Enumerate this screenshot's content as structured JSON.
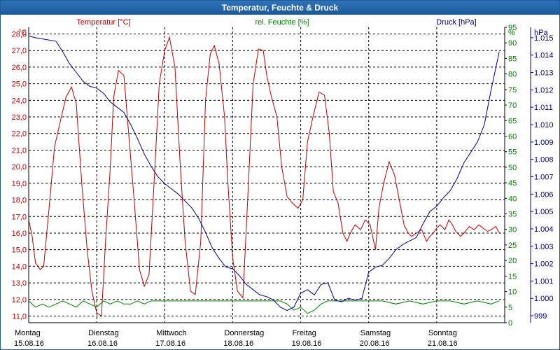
{
  "window": {
    "title": "Temperatur, Feuchte & Druck"
  },
  "chart_data": {
    "type": "line",
    "title": "Temperatur, Feuchte & Druck",
    "grid": true,
    "colors": {
      "temperature": "#c00000",
      "humidity": "#008000",
      "pressure": "#00008b",
      "grid": "#000000"
    },
    "axes": {
      "left": {
        "label": "Temperatur [°C]",
        "unit": "°C",
        "min": 10.6,
        "max": 28.4,
        "ticks": [
          "11,0",
          "12,0",
          "13,0",
          "14,0",
          "15,0",
          "16,0",
          "17,0",
          "18,0",
          "19,0",
          "20,0",
          "21,0",
          "22,0",
          "23,0",
          "24,0",
          "25,0",
          "26,0",
          "27,0",
          "28,0"
        ]
      },
      "right1": {
        "label": "rel. Feuchte [%]",
        "unit": "%",
        "min": 0,
        "max": 95,
        "ticks": [
          "0",
          "5",
          "10",
          "15",
          "20",
          "25",
          "30",
          "35",
          "40",
          "45",
          "50",
          "55",
          "60",
          "65",
          "70",
          "75",
          "80",
          "85",
          "90",
          "95"
        ]
      },
      "right2": {
        "label": "Druck [hPa]",
        "unit": "hPa",
        "min": 998.6,
        "max": 1015.6,
        "ticks": [
          "999",
          "1.000",
          "1.001",
          "1.002",
          "1.003",
          "1.004",
          "1.005",
          "1.006",
          "1.007",
          "1.008",
          "1.009",
          "1.010",
          "1.011",
          "1.012",
          "1.013",
          "1.014",
          "1.015"
        ]
      },
      "x": {
        "min": 0,
        "max": 7.0
      }
    },
    "days": [
      {
        "day": "Montag",
        "date": "15.08.16"
      },
      {
        "day": "Dienstag",
        "date": "16.08.16"
      },
      {
        "day": "Mittwoch",
        "date": "17.08.16"
      },
      {
        "day": "Donnerstag",
        "date": "18.08.16"
      },
      {
        "day": "Freitag",
        "date": "19.08.16"
      },
      {
        "day": "Samstag",
        "date": "20.08.16"
      },
      {
        "day": "Sonntag",
        "date": "21.08.16"
      }
    ],
    "series": [
      {
        "name": "Temperatur",
        "axis": "left",
        "color": "#c00000",
        "x": [
          0.0,
          0.05,
          0.1,
          0.17,
          0.22,
          0.3,
          0.38,
          0.48,
          0.55,
          0.63,
          0.7,
          0.78,
          0.86,
          0.93,
          1.0,
          1.07,
          1.13,
          1.2,
          1.25,
          1.32,
          1.4,
          1.47,
          1.55,
          1.63,
          1.7,
          1.77,
          1.85,
          1.92,
          2.0,
          2.07,
          2.15,
          2.23,
          2.3,
          2.38,
          2.45,
          2.53,
          2.6,
          2.67,
          2.73,
          2.8,
          2.88,
          2.93,
          3.0,
          3.07,
          3.15,
          3.22,
          3.3,
          3.38,
          3.45,
          3.5,
          3.57,
          3.65,
          3.72,
          3.8,
          3.88,
          3.96,
          4.03,
          4.1,
          4.18,
          4.27,
          4.35,
          4.42,
          4.48,
          4.55,
          4.62,
          4.68,
          4.73,
          4.8,
          4.88,
          4.95,
          5.02,
          5.1,
          5.15,
          5.22,
          5.3,
          5.38,
          5.45,
          5.52,
          5.58,
          5.63,
          5.7,
          5.78,
          5.85,
          5.9,
          5.95,
          6.0,
          6.05,
          6.12,
          6.18,
          6.23,
          6.28,
          6.35,
          6.4,
          6.48,
          6.55,
          6.62,
          6.68,
          6.75,
          6.8,
          6.87,
          6.92
        ],
        "values": [
          16.8,
          15.8,
          14.2,
          13.8,
          14.0,
          17.5,
          21.2,
          23.0,
          24.2,
          24.8,
          23.8,
          19.0,
          15.0,
          12.5,
          11.2,
          11.0,
          15.5,
          20.0,
          24.2,
          25.8,
          25.5,
          22.0,
          18.0,
          13.8,
          12.8,
          13.5,
          19.5,
          25.0,
          27.0,
          27.8,
          26.0,
          20.0,
          15.5,
          12.5,
          12.3,
          15.5,
          24.0,
          26.8,
          27.3,
          26.2,
          23.0,
          19.0,
          14.5,
          12.5,
          12.1,
          18.0,
          25.0,
          27.1,
          27.0,
          25.5,
          24.2,
          23.0,
          20.0,
          18.2,
          17.8,
          17.5,
          18.0,
          21.5,
          23.0,
          24.5,
          24.3,
          22.0,
          18.5,
          17.8,
          16.0,
          15.5,
          16.0,
          16.5,
          16.2,
          16.8,
          16.5,
          15.0,
          17.5,
          19.0,
          20.3,
          19.5,
          18.0,
          16.5,
          16.0,
          15.8,
          16.0,
          16.2,
          15.5,
          15.8,
          16.0,
          16.3,
          16.5,
          16.2,
          16.8,
          16.5,
          16.1,
          15.8,
          16.0,
          16.4,
          16.2,
          16.5,
          16.3,
          16.1,
          16.2,
          16.4,
          16.0
        ]
      },
      {
        "name": "rel. Feuchte",
        "axis": "right1",
        "color": "#008000",
        "x": [
          0.0,
          0.1,
          0.2,
          0.3,
          0.4,
          0.5,
          0.6,
          0.7,
          0.8,
          0.9,
          1.0,
          1.1,
          1.2,
          1.3,
          1.4,
          1.5,
          1.6,
          1.7,
          1.8,
          1.9,
          2.0,
          2.2,
          2.4,
          2.6,
          2.8,
          3.0,
          3.2,
          3.4,
          3.5,
          3.6,
          3.7,
          3.8,
          3.9,
          4.0,
          4.1,
          4.2,
          4.3,
          4.4,
          4.5,
          4.6,
          4.8,
          5.0,
          5.2,
          5.4,
          5.6,
          5.8,
          6.0,
          6.2,
          6.4,
          6.6,
          6.8,
          6.92
        ],
        "values": [
          7,
          5,
          6,
          5,
          6,
          7,
          6,
          5,
          7,
          6,
          5,
          7,
          6,
          7,
          6,
          6,
          7,
          6,
          7,
          7,
          7,
          7,
          7,
          7,
          7,
          7,
          7,
          7,
          7,
          7,
          7,
          6,
          4,
          5,
          3,
          4,
          6,
          7,
          7,
          7,
          7,
          7,
          7,
          6,
          7,
          6,
          7,
          7,
          6,
          7,
          6,
          7
        ]
      },
      {
        "name": "Druck",
        "axis": "right2",
        "color": "#00008b",
        "x": [
          0.0,
          0.1,
          0.25,
          0.4,
          0.5,
          0.6,
          0.7,
          0.8,
          0.9,
          1.0,
          1.1,
          1.2,
          1.3,
          1.4,
          1.5,
          1.6,
          1.7,
          1.8,
          1.9,
          2.0,
          2.1,
          2.2,
          2.3,
          2.4,
          2.5,
          2.6,
          2.7,
          2.8,
          2.9,
          3.0,
          3.1,
          3.2,
          3.3,
          3.4,
          3.5,
          3.6,
          3.7,
          3.8,
          3.9,
          4.0,
          4.1,
          4.2,
          4.3,
          4.4,
          4.5,
          4.6,
          4.7,
          4.8,
          4.9,
          5.0,
          5.1,
          5.2,
          5.3,
          5.4,
          5.5,
          5.6,
          5.7,
          5.8,
          5.9,
          6.0,
          6.1,
          6.2,
          6.3,
          6.4,
          6.5,
          6.6,
          6.7,
          6.8,
          6.92
        ],
        "values": [
          1015.1,
          1015.0,
          1014.9,
          1014.8,
          1014.2,
          1013.5,
          1013.0,
          1012.5,
          1012.2,
          1012.1,
          1011.8,
          1011.3,
          1011.0,
          1010.7,
          1010.0,
          1009.2,
          1008.3,
          1007.6,
          1007.0,
          1006.6,
          1006.3,
          1006.0,
          1005.6,
          1005.2,
          1004.6,
          1003.8,
          1002.9,
          1002.3,
          1001.8,
          1001.7,
          1001.3,
          1000.8,
          1000.5,
          1000.2,
          1000.1,
          999.9,
          999.5,
          999.3,
          999.5,
          1000.3,
          1000.5,
          1000.2,
          1000.8,
          1000.9,
          999.9,
          999.8,
          1000.0,
          999.9,
          1000.0,
          1001.5,
          1001.8,
          1001.9,
          1002.3,
          1002.8,
          1003.1,
          1003.3,
          1003.5,
          1004.3,
          1005.0,
          1005.3,
          1005.8,
          1006.2,
          1006.9,
          1007.8,
          1008.4,
          1009.0,
          1010.0,
          1012.0,
          1014.2
        ]
      }
    ]
  }
}
